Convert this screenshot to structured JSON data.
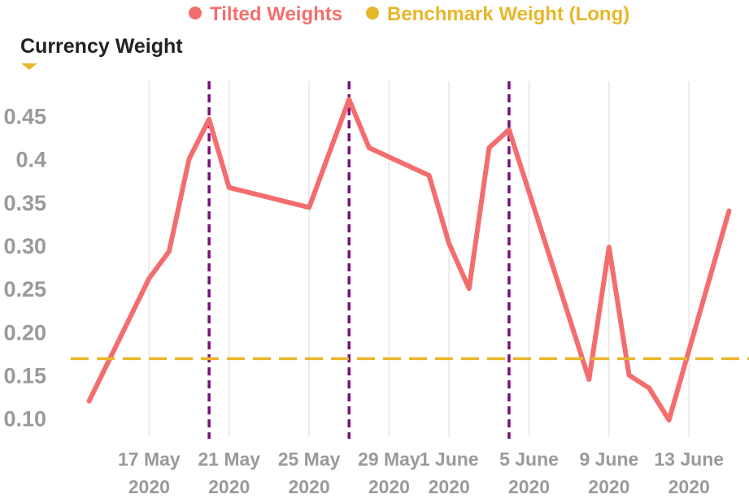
{
  "chart_data": {
    "type": "line",
    "ylabel": "Currency Weight",
    "ylim": [
      0.08,
      0.49
    ],
    "yticks": [
      {
        "value": 0.1,
        "label": "0.10"
      },
      {
        "value": 0.15,
        "label": "0.15"
      },
      {
        "value": 0.2,
        "label": "0.20"
      },
      {
        "value": 0.25,
        "label": "0.25"
      },
      {
        "value": 0.3,
        "label": "0.30"
      },
      {
        "value": 0.35,
        "label": "0.35"
      },
      {
        "value": 0.4,
        "label": "0.4"
      },
      {
        "value": 0.45,
        "label": "0.45"
      }
    ],
    "xlim": [
      "2020-05-13",
      "2020-06-16"
    ],
    "xticks": [
      {
        "date": "2020-05-17",
        "label": [
          "17 May",
          "2020"
        ]
      },
      {
        "date": "2020-05-21",
        "label": [
          "21 May",
          "2020"
        ]
      },
      {
        "date": "2020-05-25",
        "label": [
          "25 May",
          "2020"
        ]
      },
      {
        "date": "2020-05-29",
        "label": [
          "29 May",
          "2020"
        ]
      },
      {
        "date": "2020-06-01",
        "label": [
          "1 June",
          "2020"
        ]
      },
      {
        "date": "2020-06-05",
        "label": [
          "5 June",
          "2020"
        ]
      },
      {
        "date": "2020-06-09",
        "label": [
          "9 June",
          "2020"
        ]
      },
      {
        "date": "2020-06-13",
        "label": [
          "13 June",
          "2020"
        ]
      }
    ],
    "grid": "vertical",
    "legend": {
      "placement": "top",
      "entries": [
        {
          "label": "Tilted Weights",
          "color": "#f46d6d"
        },
        {
          "label": "Benchmark Weight (Long)",
          "color": "#e8b62a"
        }
      ]
    },
    "series": [
      {
        "name": "Tilted Weights",
        "color": "#f46d6d",
        "style": "solid",
        "points": [
          {
            "x": "2020-05-14",
            "y": 0.12
          },
          {
            "x": "2020-05-17",
            "y": 0.262
          },
          {
            "x": "2020-05-18",
            "y": 0.293
          },
          {
            "x": "2020-05-19",
            "y": 0.4
          },
          {
            "x": "2020-05-20",
            "y": 0.446
          },
          {
            "x": "2020-05-21",
            "y": 0.367
          },
          {
            "x": "2020-05-25",
            "y": 0.344
          },
          {
            "x": "2020-05-27",
            "y": 0.469
          },
          {
            "x": "2020-05-28",
            "y": 0.413
          },
          {
            "x": "2020-05-31",
            "y": 0.381
          },
          {
            "x": "2020-06-01",
            "y": 0.302
          },
          {
            "x": "2020-06-02",
            "y": 0.25
          },
          {
            "x": "2020-06-03",
            "y": 0.413
          },
          {
            "x": "2020-06-04",
            "y": 0.434
          },
          {
            "x": "2020-06-08",
            "y": 0.145
          },
          {
            "x": "2020-06-09",
            "y": 0.298
          },
          {
            "x": "2020-06-10",
            "y": 0.15
          },
          {
            "x": "2020-06-11",
            "y": 0.135
          },
          {
            "x": "2020-06-12",
            "y": 0.098
          },
          {
            "x": "2020-06-15",
            "y": 0.34
          }
        ]
      },
      {
        "name": "Benchmark Weight (Long)",
        "color": "#e8b62a",
        "style": "dashed",
        "y": 0.169
      }
    ],
    "markers": {
      "style": "dashed-vertical",
      "color": "#7a0f7a",
      "dates": [
        "2020-05-20",
        "2020-05-27",
        "2020-06-04"
      ]
    }
  }
}
